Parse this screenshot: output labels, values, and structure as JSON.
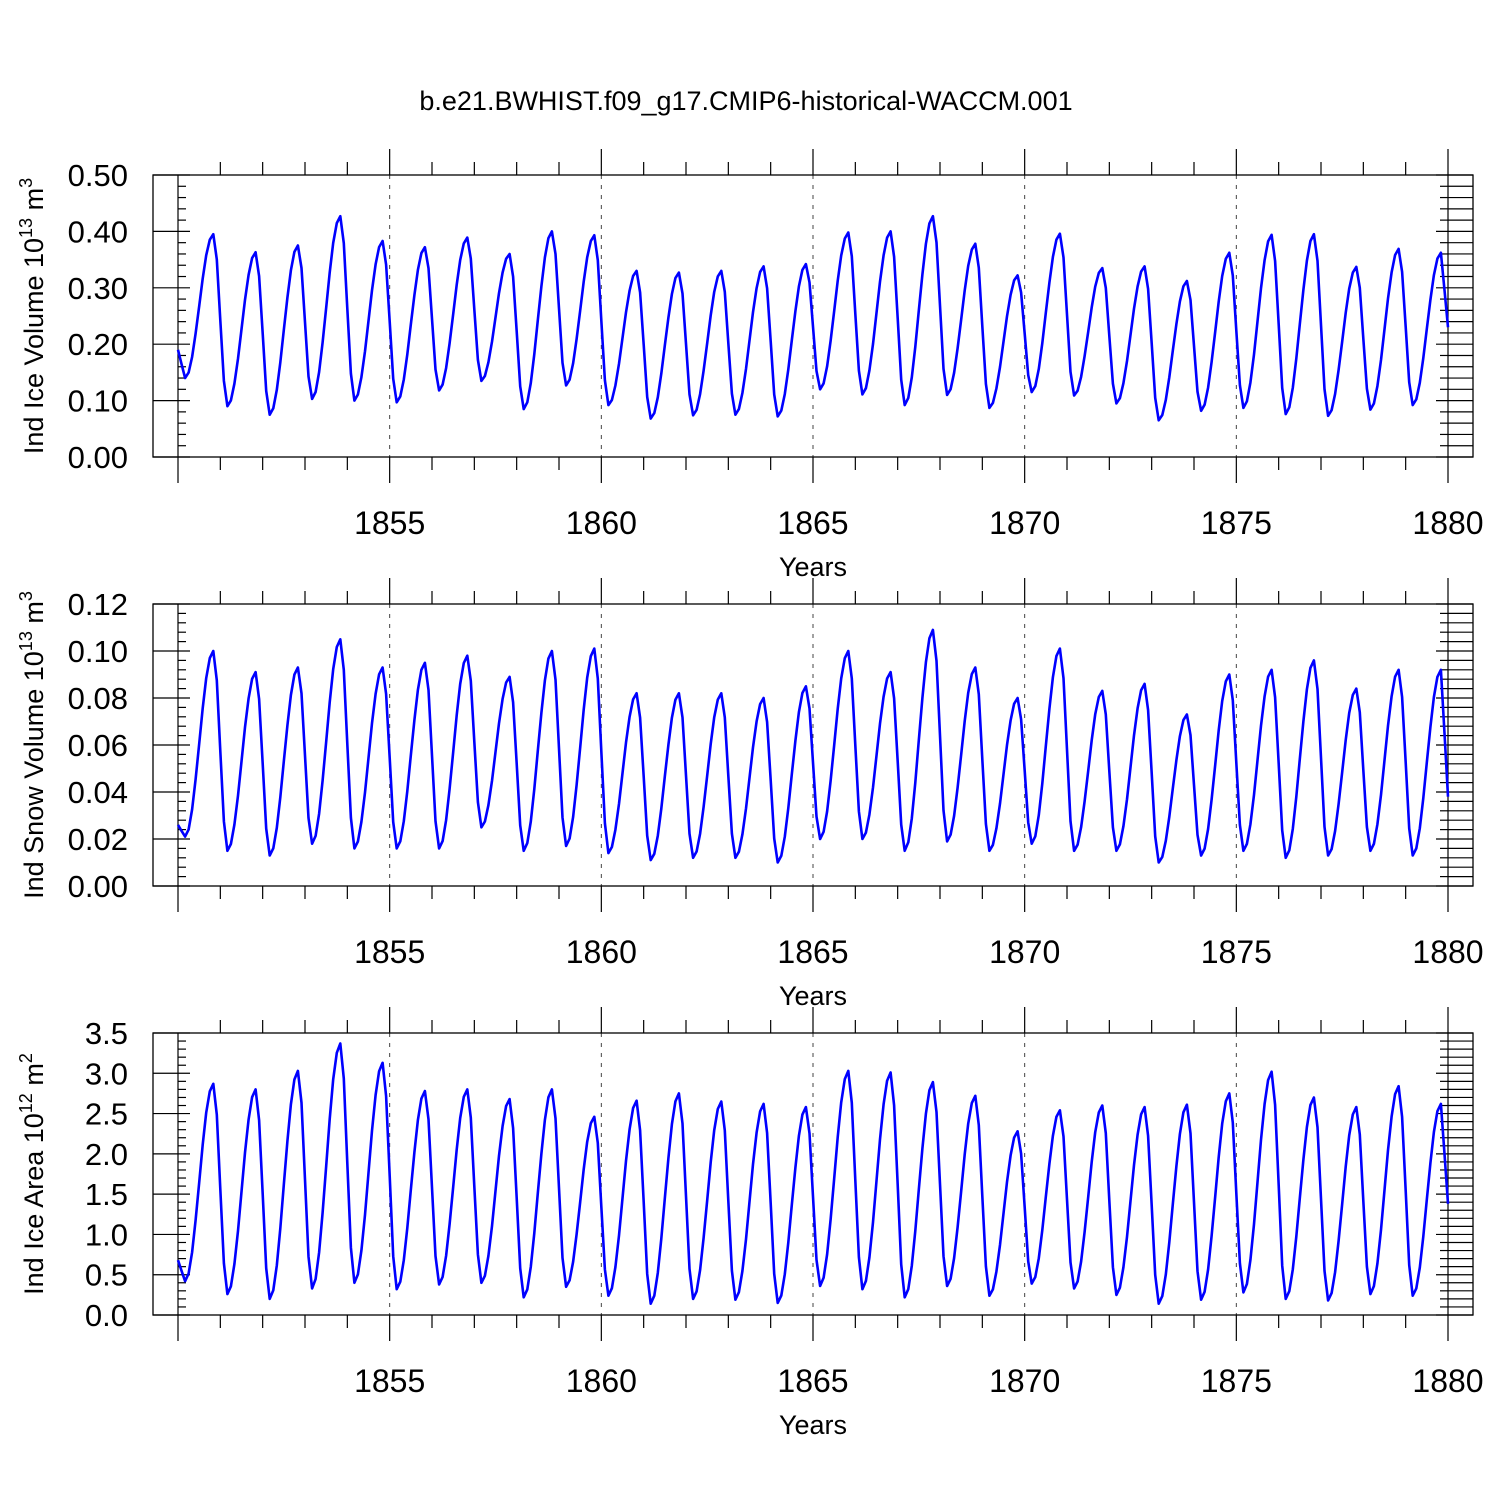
{
  "figure": {
    "title": "b.e21.BWHIST.f09_g17.CMIP6-historical-WACCM.001"
  },
  "colors": {
    "series": "#0000ff",
    "frame": "#000000",
    "grid": "#444444"
  },
  "chart_data": [
    {
      "type": "line",
      "ylabel": "Ind Ice Volume 10",
      "ylabel_exp": "13",
      "ylabel_unit": " m",
      "ylabel_unit_exp": "3",
      "xlabel": "Years",
      "xlim": [
        1850,
        1880
      ],
      "ylim": [
        0,
        0.5
      ],
      "yticks": [
        0.0,
        0.1,
        0.2,
        0.3,
        0.4,
        0.5
      ],
      "ytick_labels": [
        "0.00",
        "0.10",
        "0.20",
        "0.30",
        "0.40",
        "0.50"
      ],
      "xticks": [
        1855,
        1860,
        1865,
        1870,
        1875,
        1880
      ],
      "xtick_labels": [
        "1855",
        "1860",
        "1865",
        "1870",
        "1875",
        "1880"
      ],
      "grid": "x-dashed",
      "cycle": {
        "peak_month": 10,
        "trough_month": 2,
        "start_value": 0.19,
        "end_value": 0.23,
        "years": [
          1850,
          1851,
          1852,
          1853,
          1854,
          1855,
          1856,
          1857,
          1858,
          1859,
          1860,
          1861,
          1862,
          1863,
          1864,
          1865,
          1866,
          1867,
          1868,
          1869,
          1870,
          1871,
          1872,
          1873,
          1874,
          1875,
          1876,
          1877,
          1878,
          1879
        ],
        "maxima": [
          0.395,
          0.363,
          0.375,
          0.427,
          0.383,
          0.372,
          0.389,
          0.36,
          0.4,
          0.393,
          0.33,
          0.327,
          0.33,
          0.338,
          0.342,
          0.398,
          0.4,
          0.427,
          0.378,
          0.322,
          0.396,
          0.335,
          0.338,
          0.312,
          0.362,
          0.394,
          0.395,
          0.337,
          0.369,
          0.362
        ],
        "minima": [
          0.14,
          0.09,
          0.075,
          0.103,
          0.1,
          0.097,
          0.118,
          0.135,
          0.085,
          0.127,
          0.092,
          0.068,
          0.074,
          0.075,
          0.072,
          0.12,
          0.111,
          0.092,
          0.11,
          0.087,
          0.115,
          0.109,
          0.095,
          0.065,
          0.082,
          0.087,
          0.076,
          0.073,
          0.084,
          0.092
        ]
      }
    },
    {
      "type": "line",
      "ylabel": "Ind Snow Volume 10",
      "ylabel_exp": "13",
      "ylabel_unit": " m",
      "ylabel_unit_exp": "3",
      "xlabel": "Years",
      "xlim": [
        1850,
        1880
      ],
      "ylim": [
        0,
        0.12
      ],
      "yticks": [
        0.0,
        0.02,
        0.04,
        0.06,
        0.08,
        0.1,
        0.12
      ],
      "ytick_labels": [
        "0.00",
        "0.02",
        "0.04",
        "0.06",
        "0.08",
        "0.10",
        "0.12"
      ],
      "xticks": [
        1855,
        1860,
        1865,
        1870,
        1875,
        1880
      ],
      "xtick_labels": [
        "1855",
        "1860",
        "1865",
        "1870",
        "1875",
        "1880"
      ],
      "grid": "x-dashed",
      "cycle": {
        "peak_month": 10,
        "trough_month": 2,
        "start_value": 0.026,
        "end_value": 0.038,
        "years": [
          1850,
          1851,
          1852,
          1853,
          1854,
          1855,
          1856,
          1857,
          1858,
          1859,
          1860,
          1861,
          1862,
          1863,
          1864,
          1865,
          1866,
          1867,
          1868,
          1869,
          1870,
          1871,
          1872,
          1873,
          1874,
          1875,
          1876,
          1877,
          1878,
          1879
        ],
        "maxima": [
          0.1,
          0.091,
          0.093,
          0.105,
          0.093,
          0.095,
          0.098,
          0.089,
          0.1,
          0.101,
          0.082,
          0.082,
          0.082,
          0.08,
          0.085,
          0.1,
          0.091,
          0.109,
          0.093,
          0.08,
          0.101,
          0.083,
          0.086,
          0.073,
          0.09,
          0.092,
          0.096,
          0.084,
          0.092,
          0.092
        ],
        "minima": [
          0.021,
          0.015,
          0.013,
          0.018,
          0.016,
          0.016,
          0.016,
          0.025,
          0.015,
          0.017,
          0.014,
          0.011,
          0.012,
          0.012,
          0.01,
          0.02,
          0.02,
          0.015,
          0.019,
          0.015,
          0.018,
          0.015,
          0.015,
          0.01,
          0.013,
          0.015,
          0.012,
          0.013,
          0.015,
          0.013
        ]
      }
    },
    {
      "type": "line",
      "ylabel": "Ind Ice Area 10",
      "ylabel_exp": "12",
      "ylabel_unit": " m",
      "ylabel_unit_exp": "2",
      "xlabel": "Years",
      "xlim": [
        1850,
        1880
      ],
      "ylim": [
        0,
        3.5
      ],
      "yticks": [
        0.0,
        0.5,
        1.0,
        1.5,
        2.0,
        2.5,
        3.0,
        3.5
      ],
      "ytick_labels": [
        "0.0",
        "0.5",
        "1.0",
        "1.5",
        "2.0",
        "2.5",
        "3.0",
        "3.5"
      ],
      "xticks": [
        1855,
        1860,
        1865,
        1870,
        1875,
        1880
      ],
      "xtick_labels": [
        "1855",
        "1860",
        "1865",
        "1870",
        "1875",
        "1880"
      ],
      "grid": "x-dashed",
      "cycle": {
        "peak_month": 10,
        "trough_month": 2,
        "start_value": 0.68,
        "end_value": 1.38,
        "years": [
          1850,
          1851,
          1852,
          1853,
          1854,
          1855,
          1856,
          1857,
          1858,
          1859,
          1860,
          1861,
          1862,
          1863,
          1864,
          1865,
          1866,
          1867,
          1868,
          1869,
          1870,
          1871,
          1872,
          1873,
          1874,
          1875,
          1876,
          1877,
          1878,
          1879
        ],
        "maxima": [
          2.87,
          2.8,
          3.03,
          3.37,
          3.13,
          2.78,
          2.8,
          2.68,
          2.8,
          2.46,
          2.66,
          2.75,
          2.65,
          2.62,
          2.58,
          3.03,
          3.01,
          2.89,
          2.72,
          2.28,
          2.54,
          2.6,
          2.58,
          2.61,
          2.75,
          3.02,
          2.7,
          2.58,
          2.84,
          2.62
        ],
        "minima": [
          0.42,
          0.26,
          0.2,
          0.33,
          0.4,
          0.32,
          0.38,
          0.4,
          0.22,
          0.35,
          0.24,
          0.14,
          0.2,
          0.19,
          0.15,
          0.36,
          0.32,
          0.22,
          0.36,
          0.24,
          0.39,
          0.33,
          0.25,
          0.14,
          0.19,
          0.28,
          0.2,
          0.18,
          0.26,
          0.24
        ]
      }
    }
  ]
}
